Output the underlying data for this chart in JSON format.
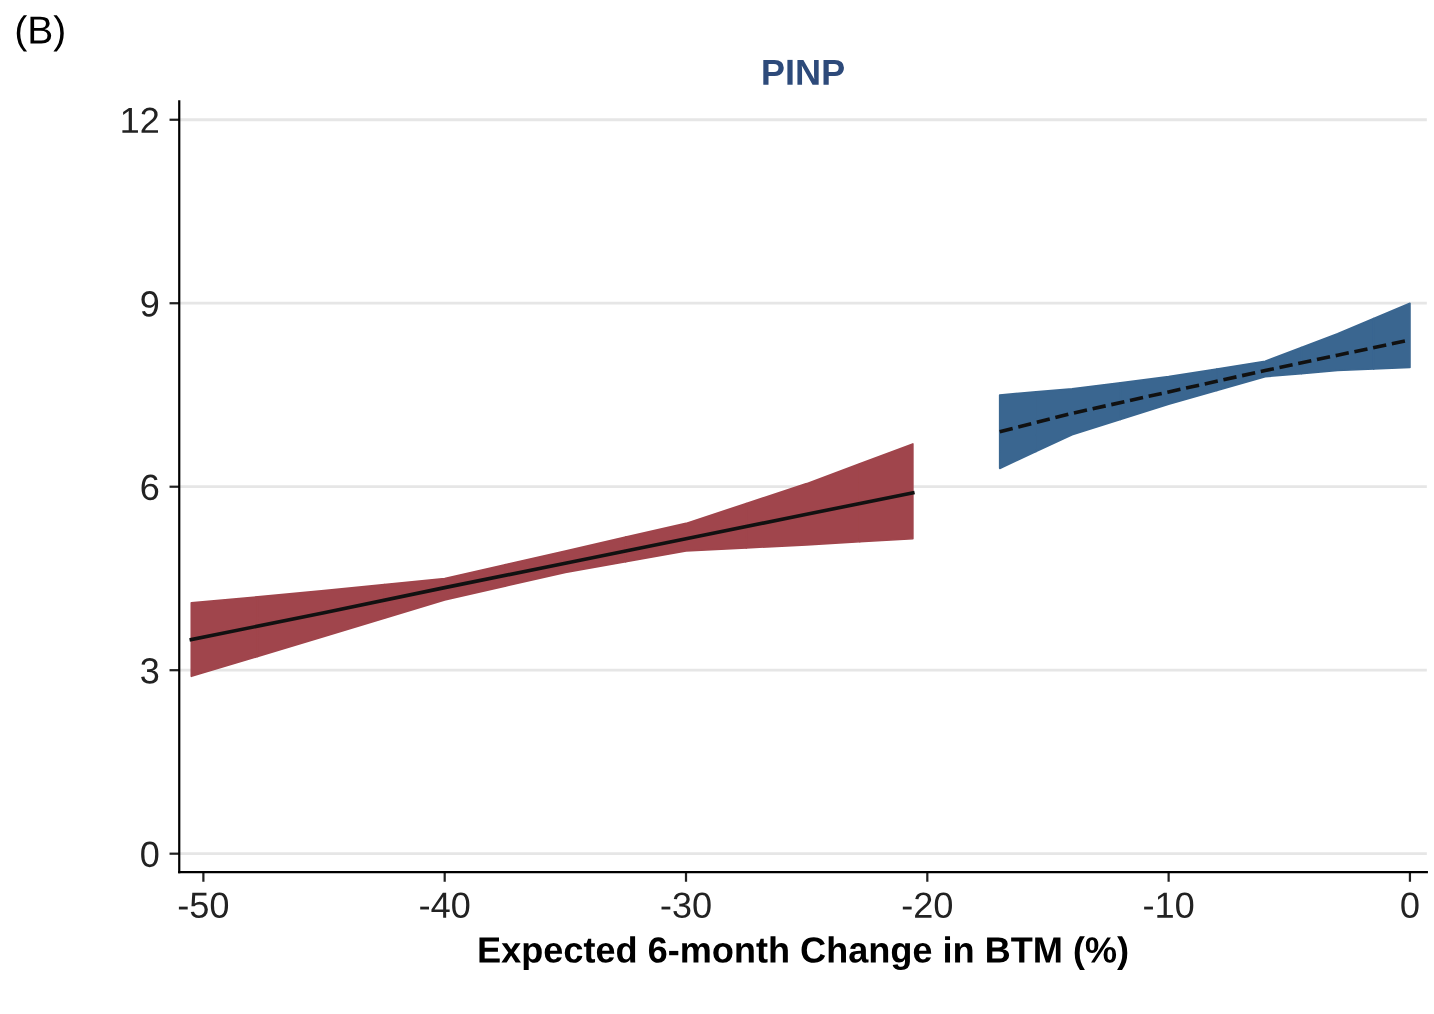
{
  "chart_data": {
    "type": "line",
    "title": "PINP",
    "xlabel": "Expected 6-month Change in BTM (%)",
    "annotations": [
      "(B)"
    ],
    "series": [
      {
        "color": "#111111",
        "colors": [
          "#a0454c",
          "#a0454c",
          "#a0454c",
          "#a0454c",
          "#a0454c",
          "#a0454c",
          "#a0454c"
        ],
        "line_style": "solid",
        "x": [
          -50.5,
          -45,
          -40,
          -35,
          -30,
          -25,
          -20.6
        ],
        "values": [
          3.5,
          3.94,
          4.35,
          4.75,
          5.15,
          5.55,
          5.9
        ],
        "lower": [
          2.9,
          3.55,
          4.15,
          4.6,
          4.95,
          5.05,
          5.15
        ],
        "upper": [
          4.1,
          4.3,
          4.5,
          4.95,
          5.4,
          6.05,
          6.7
        ]
      },
      {
        "color": "#111111",
        "colors": [
          "#3a6690",
          "#3a6690",
          "#3a6690",
          "#3a6690",
          "#3a6690",
          "#3a6690"
        ],
        "line_style": "dashed",
        "x": [
          -17,
          -14,
          -10,
          -6,
          -3,
          0
        ],
        "values": [
          6.9,
          7.2,
          7.55,
          7.9,
          8.15,
          8.4
        ],
        "lower": [
          6.3,
          6.85,
          7.35,
          7.8,
          7.9,
          7.95
        ],
        "upper": [
          7.5,
          7.6,
          7.8,
          8.05,
          8.5,
          9.0
        ]
      }
    ],
    "xlim": [
      -51,
      0.7
    ],
    "ylim": [
      -0.3,
      12.3
    ],
    "xticks": [
      -50,
      -40,
      -30,
      -20,
      -10,
      0
    ],
    "yticks": [
      0,
      3,
      6,
      9,
      12
    ],
    "grid": "y",
    "marker": "none"
  }
}
